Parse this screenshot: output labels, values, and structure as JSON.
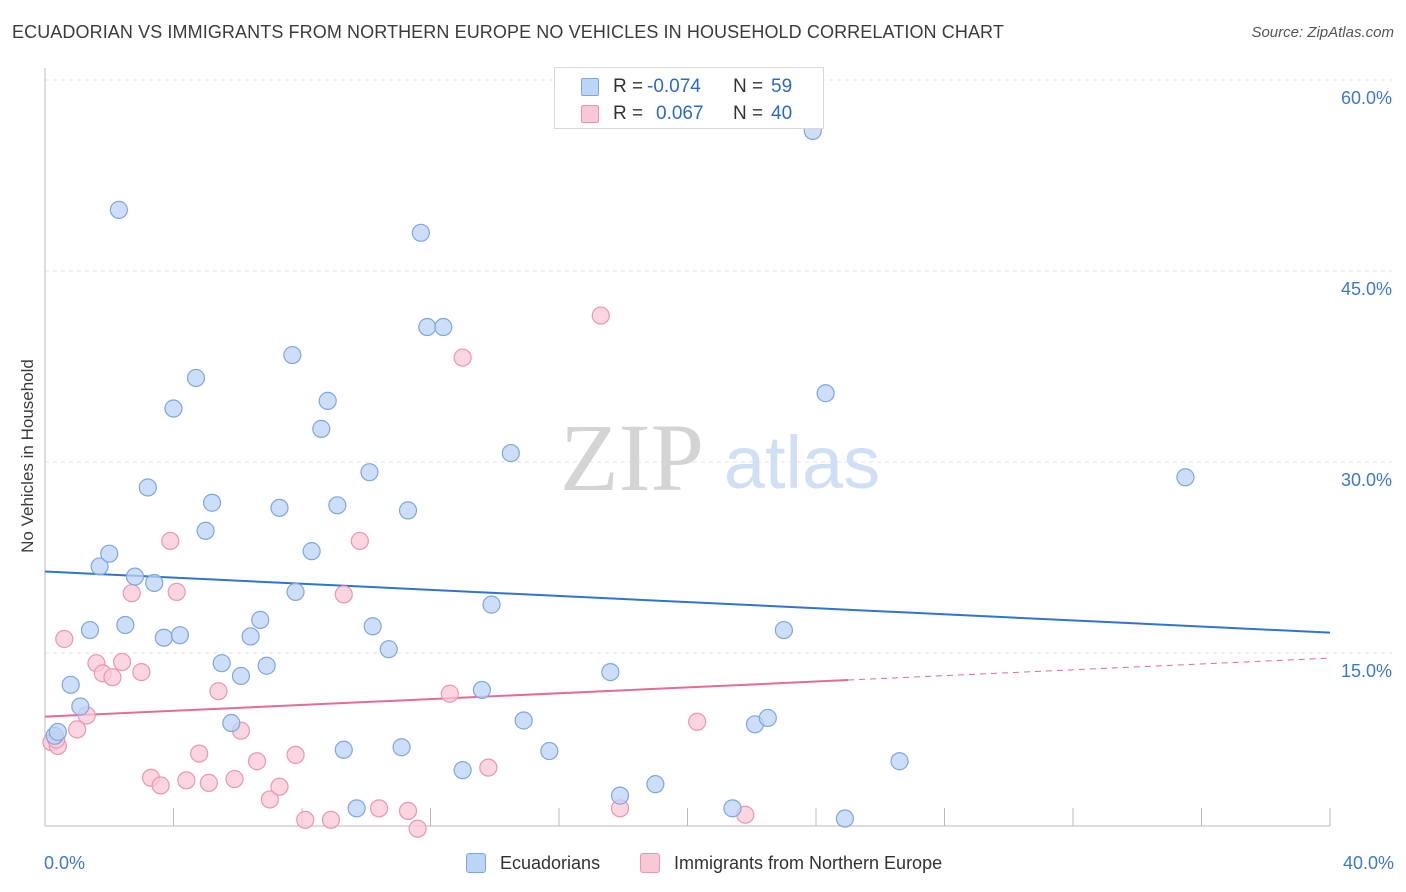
{
  "title": "ECUADORIAN VS IMMIGRANTS FROM NORTHERN EUROPE NO VEHICLES IN HOUSEHOLD CORRELATION CHART",
  "source": "Source: ZipAtlas.com",
  "watermark": {
    "zip": "ZIP",
    "atlas": "atlas"
  },
  "colors": {
    "blue_fill": "#bcd4f5",
    "blue_stroke": "#7fa7dd",
    "blue_line": "#2f74d0",
    "pink_fill": "#f9c8d6",
    "pink_stroke": "#eb96b1",
    "pink_line": "#e36d96",
    "tick_text": "#3f79cc",
    "grid": "#e3e3e3"
  },
  "legend_top": {
    "rows": [
      {
        "series": "blue",
        "r_label": "R =",
        "r_value": "-0.074",
        "n_label": "N =",
        "n_value": "59"
      },
      {
        "series": "pink",
        "r_label": "R =",
        "r_value": "0.067",
        "n_label": "N =",
        "n_value": "40"
      }
    ]
  },
  "legend_bottom": [
    "Ecuadorians",
    "Immigrants from Northern Europe"
  ],
  "chart_data": {
    "type": "scatter",
    "title": "ECUADORIAN VS IMMIGRANTS FROM NORTHERN EUROPE NO VEHICLES IN HOUSEHOLD CORRELATION CHART",
    "xlabel": "",
    "ylabel": "No Vehicles in Household",
    "xlim": [
      0,
      40
    ],
    "ylim": [
      0,
      62
    ],
    "x_tick_labels": [
      "0.0%",
      "40.0%"
    ],
    "y_ticks": [
      15,
      30,
      45,
      60
    ],
    "y_tick_labels": [
      "15.0%",
      "30.0%",
      "45.0%",
      "60.0%"
    ],
    "grid": true,
    "legend_position": "top-center",
    "series": [
      {
        "name": "Ecuadorians",
        "color": "#7fa7dd",
        "r": -0.074,
        "n": 59,
        "trend": {
          "x": [
            0,
            40
          ],
          "y": [
            21.4,
            16.6
          ],
          "dashed_from": null
        },
        "points": [
          [
            0.3,
            8.5
          ],
          [
            0.4,
            8.8
          ],
          [
            0.8,
            12.5
          ],
          [
            1.1,
            10.8
          ],
          [
            1.4,
            16.8
          ],
          [
            1.7,
            21.8
          ],
          [
            2.0,
            22.8
          ],
          [
            2.3,
            49.8
          ],
          [
            2.5,
            17.2
          ],
          [
            2.8,
            21.0
          ],
          [
            3.2,
            28.0
          ],
          [
            3.4,
            20.5
          ],
          [
            3.7,
            16.2
          ],
          [
            4.0,
            34.2
          ],
          [
            4.2,
            16.4
          ],
          [
            4.7,
            36.6
          ],
          [
            5.0,
            24.6
          ],
          [
            5.2,
            26.8
          ],
          [
            5.5,
            14.2
          ],
          [
            5.8,
            9.5
          ],
          [
            6.1,
            13.2
          ],
          [
            6.4,
            16.3
          ],
          [
            6.7,
            17.6
          ],
          [
            6.9,
            14.0
          ],
          [
            7.3,
            26.4
          ],
          [
            7.7,
            38.4
          ],
          [
            7.8,
            19.8
          ],
          [
            8.3,
            23.0
          ],
          [
            8.6,
            32.6
          ],
          [
            8.8,
            34.8
          ],
          [
            9.1,
            26.6
          ],
          [
            9.3,
            7.4
          ],
          [
            9.7,
            2.8
          ],
          [
            10.1,
            29.2
          ],
          [
            10.2,
            17.1
          ],
          [
            10.7,
            15.3
          ],
          [
            11.1,
            7.6
          ],
          [
            11.3,
            26.2
          ],
          [
            11.7,
            48.0
          ],
          [
            11.9,
            40.6
          ],
          [
            12.4,
            40.6
          ],
          [
            13.0,
            5.8
          ],
          [
            13.6,
            12.1
          ],
          [
            13.9,
            18.8
          ],
          [
            14.5,
            30.7
          ],
          [
            14.9,
            9.7
          ],
          [
            15.7,
            7.3
          ],
          [
            17.6,
            13.5
          ],
          [
            17.9,
            3.8
          ],
          [
            19.0,
            4.7
          ],
          [
            21.4,
            2.8
          ],
          [
            22.1,
            9.4
          ],
          [
            22.5,
            9.9
          ],
          [
            23.0,
            16.8
          ],
          [
            23.9,
            56.0
          ],
          [
            24.3,
            35.4
          ],
          [
            24.9,
            2.0
          ],
          [
            26.6,
            6.5
          ],
          [
            35.5,
            28.8
          ]
        ]
      },
      {
        "name": "Immigrants from Northern Europe",
        "color": "#eb96b1",
        "r": 0.067,
        "n": 40,
        "trend": {
          "x": [
            0,
            40
          ],
          "y": [
            10.0,
            14.6
          ],
          "dashed_from": 25.0
        },
        "points": [
          [
            0.2,
            8.0
          ],
          [
            0.4,
            7.7
          ],
          [
            0.6,
            16.1
          ],
          [
            1.0,
            9.0
          ],
          [
            1.3,
            10.1
          ],
          [
            1.6,
            14.2
          ],
          [
            1.8,
            13.4
          ],
          [
            2.1,
            13.1
          ],
          [
            2.4,
            14.3
          ],
          [
            2.7,
            19.7
          ],
          [
            3.0,
            13.5
          ],
          [
            3.3,
            5.2
          ],
          [
            3.6,
            4.6
          ],
          [
            3.9,
            23.8
          ],
          [
            4.1,
            19.8
          ],
          [
            4.4,
            5.0
          ],
          [
            4.8,
            7.1
          ],
          [
            5.1,
            4.8
          ],
          [
            5.4,
            12.0
          ],
          [
            5.9,
            5.1
          ],
          [
            6.1,
            8.9
          ],
          [
            6.6,
            6.5
          ],
          [
            7.0,
            3.5
          ],
          [
            7.3,
            4.5
          ],
          [
            7.8,
            7.0
          ],
          [
            8.1,
            1.9
          ],
          [
            8.9,
            1.9
          ],
          [
            9.3,
            19.6
          ],
          [
            9.8,
            23.8
          ],
          [
            10.4,
            2.8
          ],
          [
            11.3,
            2.6
          ],
          [
            11.6,
            1.2
          ],
          [
            12.6,
            11.8
          ],
          [
            13.0,
            38.2
          ],
          [
            13.8,
            6.0
          ],
          [
            17.3,
            41.5
          ],
          [
            17.9,
            2.8
          ],
          [
            20.3,
            9.6
          ],
          [
            21.8,
            2.3
          ],
          [
            0.35,
            8.2
          ]
        ]
      }
    ]
  }
}
